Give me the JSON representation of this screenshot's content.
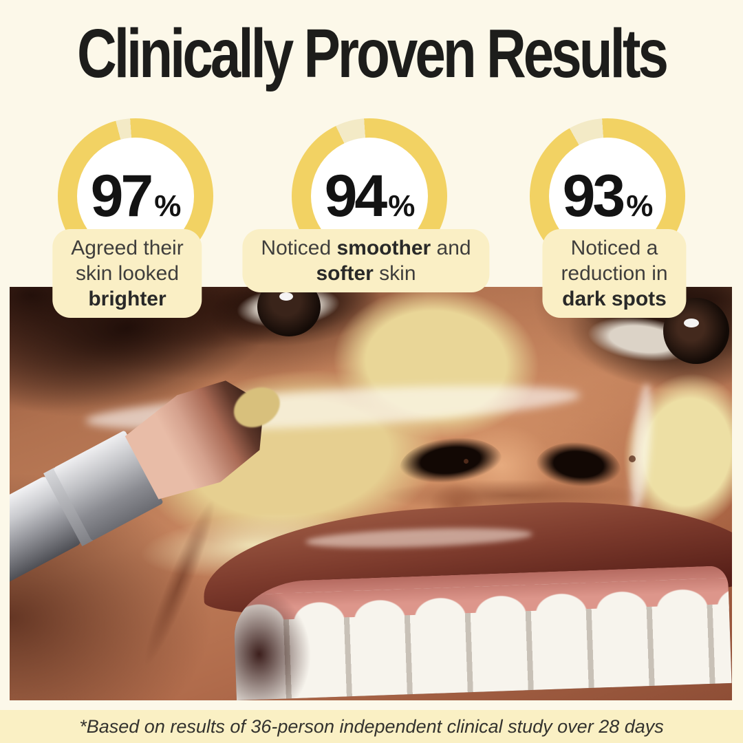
{
  "page": {
    "title": "Clinically Proven Results",
    "footnote": "*Based on results of 36-person independent clinical study over 28 days",
    "background": "#FCF8E9"
  },
  "colors": {
    "ring_fill": "#F2D263",
    "ring_track": "#F3EAC6",
    "ring_inner": "#FFFFFF",
    "stat_box_bg": "#FAEFC5",
    "footer_band_bg": "#FAF0C4",
    "headline_text": "#1D1D1B",
    "stat_number_text": "#131313",
    "label_text": "#3F3E3C"
  },
  "stats": [
    {
      "value": 97,
      "unit": "%",
      "label_text": "Agreed their skin looked brighter",
      "label_segments": [
        {
          "text": "Agreed their"
        },
        {
          "br": true
        },
        {
          "text": "skin looked"
        },
        {
          "br": true
        },
        {
          "text": "brighter",
          "bold": true
        }
      ]
    },
    {
      "value": 94,
      "unit": "%",
      "label_text": "Noticed smoother and softer skin",
      "label_segments": [
        {
          "text": "Noticed "
        },
        {
          "text": "smoother",
          "bold": true
        },
        {
          "text": " and"
        },
        {
          "br": true
        },
        {
          "text": "softer",
          "bold": true
        },
        {
          "text": " skin"
        }
      ]
    },
    {
      "value": 93,
      "unit": "%",
      "label_text": "Noticed a reduction in dark spots",
      "label_segments": [
        {
          "text": "Noticed a"
        },
        {
          "br": true
        },
        {
          "text": "reduction in"
        },
        {
          "br": true
        },
        {
          "text": "dark spots",
          "bold": true
        }
      ]
    }
  ],
  "chart_data": [
    {
      "type": "pie",
      "style": "donut",
      "value": 97,
      "remainder": 3,
      "unit": "%",
      "label": "Agreed their skin looked brighter"
    },
    {
      "type": "pie",
      "style": "donut",
      "value": 94,
      "remainder": 6,
      "unit": "%",
      "label": "Noticed smoother and softer skin"
    },
    {
      "type": "pie",
      "style": "donut",
      "value": 93,
      "remainder": 7,
      "unit": "%",
      "label": "Noticed a reduction in dark spots"
    }
  ],
  "photo": {
    "alt": "Close-up of a smiling person with a yellow clay mask being applied to the cheek and nose with a silver makeup brush"
  }
}
